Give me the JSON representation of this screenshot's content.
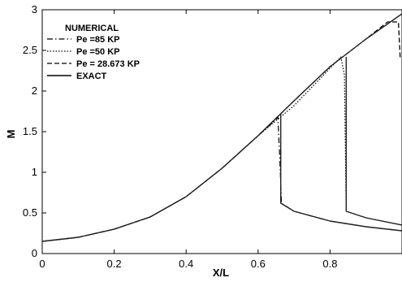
{
  "chart_data": {
    "type": "line",
    "title": "",
    "xlabel": "X/L",
    "ylabel": "M",
    "xlim": [
      0,
      1
    ],
    "ylim": [
      0,
      3
    ],
    "grid": false,
    "legend_position": "top-left",
    "x_ticks": [
      "0",
      "0.2",
      "0.4",
      "0.6",
      "0.8"
    ],
    "y_ticks": [
      "0",
      "0.5",
      "1",
      "1.5",
      "2",
      "2.5",
      "3"
    ],
    "legend_title": "NUMERICAL",
    "series": [
      {
        "name": "Pe =85 KP",
        "style": "dashdot",
        "x": [
          0,
          0.1,
          0.2,
          0.3,
          0.4,
          0.5,
          0.6,
          0.65,
          0.655,
          0.66,
          0.665,
          0.7,
          0.8,
          0.9,
          1.0
        ],
        "y": [
          0.15,
          0.2,
          0.3,
          0.45,
          0.7,
          1.05,
          1.45,
          1.65,
          1.68,
          1.2,
          0.62,
          0.52,
          0.4,
          0.33,
          0.28
        ]
      },
      {
        "name": "Pe =50 KP",
        "style": "dotted",
        "x": [
          0,
          0.1,
          0.2,
          0.3,
          0.4,
          0.5,
          0.6,
          0.7,
          0.8,
          0.83,
          0.84,
          0.845,
          0.9,
          1.0
        ],
        "y": [
          0.15,
          0.2,
          0.3,
          0.45,
          0.7,
          1.05,
          1.45,
          1.82,
          2.28,
          2.42,
          2.2,
          0.52,
          0.44,
          0.35
        ]
      },
      {
        "name": "Pe = 28.673 KP",
        "style": "dashed",
        "x": [
          0,
          0.1,
          0.2,
          0.3,
          0.4,
          0.5,
          0.6,
          0.7,
          0.8,
          0.9,
          0.96,
          0.99,
          0.995
        ],
        "y": [
          0.15,
          0.2,
          0.3,
          0.45,
          0.7,
          1.05,
          1.45,
          1.88,
          2.3,
          2.64,
          2.85,
          2.85,
          2.4
        ]
      },
      {
        "name": "EXACT",
        "style": "solid",
        "segments": [
          {
            "x": [
              0,
              0.1,
              0.2,
              0.3,
              0.4,
              0.5,
              0.6,
              0.7,
              0.8,
              0.9,
              1.0
            ],
            "y": [
              0.15,
              0.2,
              0.3,
              0.45,
              0.7,
              1.05,
              1.45,
              1.88,
              2.3,
              2.64,
              2.95
            ]
          },
          {
            "x": [
              0.663,
              0.663,
              0.7,
              0.8,
              0.9,
              1.0
            ],
            "y": [
              1.72,
              0.62,
              0.52,
              0.4,
              0.33,
              0.28
            ]
          },
          {
            "x": [
              0.845,
              0.845,
              0.9,
              1.0
            ],
            "y": [
              2.42,
              0.52,
              0.44,
              0.35
            ]
          }
        ]
      }
    ]
  }
}
